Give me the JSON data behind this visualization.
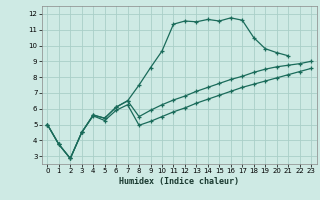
{
  "xlabel": "Humidex (Indice chaleur)",
  "bg_color": "#ceeae4",
  "grid_color": "#aacfc8",
  "line_color": "#1a6b5a",
  "xlim": [
    -0.5,
    23.5
  ],
  "ylim": [
    2.5,
    12.5
  ],
  "yticks": [
    3,
    4,
    5,
    6,
    7,
    8,
    9,
    10,
    11,
    12
  ],
  "xticks": [
    0,
    1,
    2,
    3,
    4,
    5,
    6,
    7,
    8,
    9,
    10,
    11,
    12,
    13,
    14,
    15,
    16,
    17,
    18,
    19,
    20,
    21,
    22,
    23
  ],
  "curve1_x": [
    0,
    1,
    2,
    3,
    4,
    5,
    6,
    7,
    8,
    9,
    10,
    11,
    12,
    13,
    14,
    15,
    16,
    17,
    18,
    19,
    20,
    21
  ],
  "curve1_y": [
    5.0,
    3.75,
    2.85,
    4.5,
    5.6,
    5.4,
    6.1,
    6.5,
    7.5,
    8.6,
    9.65,
    11.35,
    11.55,
    11.5,
    11.65,
    11.55,
    11.75,
    11.6,
    10.5,
    9.8,
    9.55,
    9.35
  ],
  "curve2_x": [
    0,
    1,
    2,
    3,
    4,
    5,
    6,
    7,
    8,
    9,
    10,
    11,
    12,
    13,
    14,
    15,
    16,
    17,
    18,
    19,
    20,
    21,
    22,
    23
  ],
  "curve2_y": [
    5.0,
    3.75,
    2.85,
    4.5,
    5.6,
    5.4,
    6.1,
    6.5,
    5.5,
    5.9,
    6.25,
    6.55,
    6.8,
    7.1,
    7.35,
    7.6,
    7.85,
    8.05,
    8.3,
    8.5,
    8.65,
    8.75,
    8.85,
    9.0
  ],
  "curve3_x": [
    0,
    1,
    2,
    3,
    4,
    5,
    6,
    7,
    8,
    9,
    10,
    11,
    12,
    13,
    14,
    15,
    16,
    17,
    18,
    19,
    20,
    21,
    22,
    23
  ],
  "curve3_y": [
    5.0,
    3.75,
    2.85,
    4.5,
    5.55,
    5.25,
    5.9,
    6.25,
    4.95,
    5.2,
    5.5,
    5.8,
    6.05,
    6.35,
    6.6,
    6.85,
    7.1,
    7.35,
    7.55,
    7.75,
    7.95,
    8.15,
    8.35,
    8.55
  ]
}
